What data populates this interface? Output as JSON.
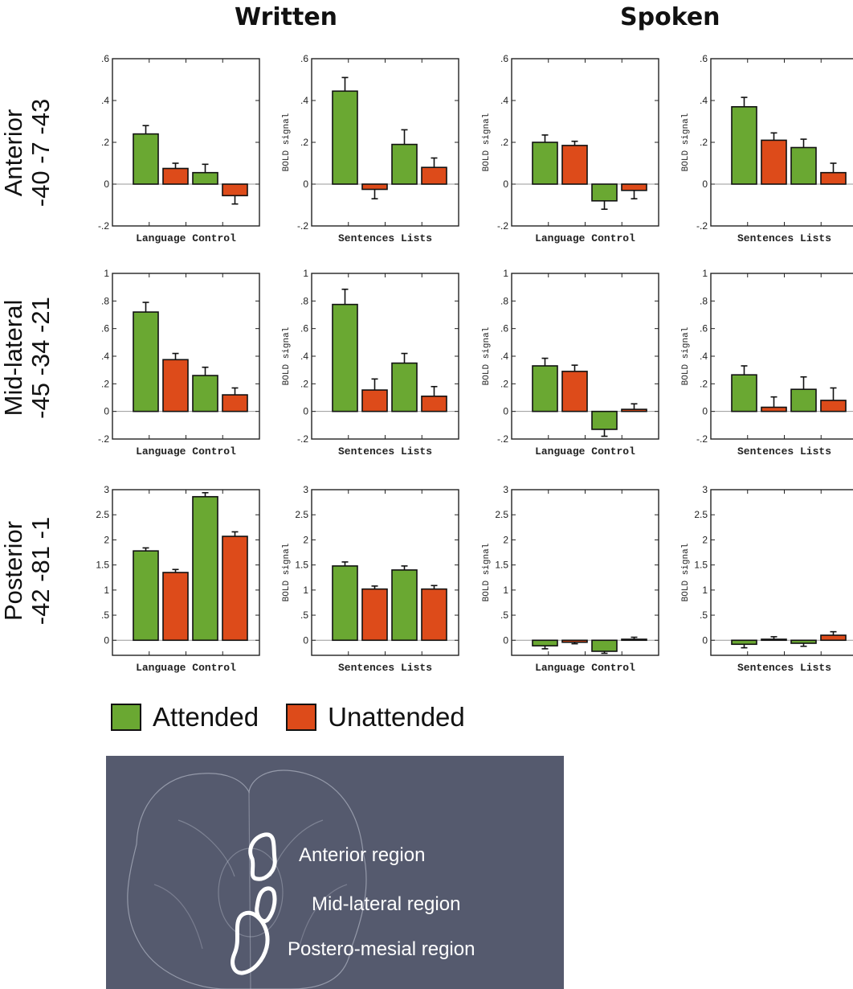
{
  "column_titles": [
    "Written",
    "Spoken"
  ],
  "row_labels": [
    {
      "line1": "Anterior",
      "line2": "-40 -7 -43"
    },
    {
      "line1": "Mid-lateral",
      "line2": "-45 -34 -21"
    },
    {
      "line1": "Posterior",
      "line2": "-42 -81 -1"
    }
  ],
  "legend": [
    {
      "label": "Attended",
      "color": "#6aa832"
    },
    {
      "label": "Unattended",
      "color": "#dd4b1a"
    }
  ],
  "brain_inset": {
    "labels": [
      "Anterior region",
      "Mid-lateral region",
      "Postero-mesial region"
    ],
    "background": "#555a6e"
  },
  "chart_data": [
    {
      "type": "bar",
      "row": "Anterior",
      "column": "Written",
      "ylabel": "",
      "xlabel": "Language Control",
      "ylim": [
        -0.2,
        0.6
      ],
      "yticks": [
        ".6",
        ".4",
        ".2",
        "0",
        "-.2"
      ],
      "ytick_values": [
        0.6,
        0.4,
        0.2,
        0,
        -0.2
      ],
      "values": [
        0.24,
        0.075,
        0.055,
        -0.055
      ],
      "errors": [
        0.04,
        0.025,
        0.04,
        0.04
      ],
      "colors": [
        "#6aa832",
        "#dd4b1a",
        "#6aa832",
        "#dd4b1a"
      ]
    },
    {
      "type": "bar",
      "row": "Anterior",
      "column": "Written",
      "ylabel": "BOLD signal",
      "xlabel": "Sentences Lists",
      "ylim": [
        -0.2,
        0.6
      ],
      "yticks": [
        ".6",
        ".4",
        ".2",
        "0",
        "-.2"
      ],
      "ytick_values": [
        0.6,
        0.4,
        0.2,
        0,
        -0.2
      ],
      "values": [
        0.445,
        -0.025,
        0.19,
        0.08
      ],
      "errors": [
        0.065,
        0.045,
        0.07,
        0.045
      ],
      "colors": [
        "#6aa832",
        "#dd4b1a",
        "#6aa832",
        "#dd4b1a"
      ]
    },
    {
      "type": "bar",
      "row": "Anterior",
      "column": "Spoken",
      "ylabel": "BOLD signal",
      "xlabel": "Language Control",
      "ylim": [
        -0.2,
        0.6
      ],
      "yticks": [
        ".6",
        ".4",
        ".2",
        "0",
        "-.2"
      ],
      "ytick_values": [
        0.6,
        0.4,
        0.2,
        0,
        -0.2
      ],
      "values": [
        0.2,
        0.185,
        -0.08,
        -0.03
      ],
      "errors": [
        0.035,
        0.02,
        0.04,
        0.04
      ],
      "colors": [
        "#6aa832",
        "#dd4b1a",
        "#6aa832",
        "#dd4b1a"
      ]
    },
    {
      "type": "bar",
      "row": "Anterior",
      "column": "Spoken",
      "ylabel": "BOLD signal",
      "xlabel": "Sentences Lists",
      "ylim": [
        -0.2,
        0.6
      ],
      "yticks": [
        ".6",
        ".4",
        ".2",
        "0",
        "-.2"
      ],
      "ytick_values": [
        0.6,
        0.4,
        0.2,
        0,
        -0.2
      ],
      "values": [
        0.37,
        0.21,
        0.175,
        0.055
      ],
      "errors": [
        0.045,
        0.035,
        0.04,
        0.045
      ],
      "colors": [
        "#6aa832",
        "#dd4b1a",
        "#6aa832",
        "#dd4b1a"
      ]
    },
    {
      "type": "bar",
      "row": "Mid-lateral",
      "column": "Written",
      "ylabel": "",
      "xlabel": "Language Control",
      "ylim": [
        -0.2,
        1
      ],
      "yticks": [
        "1",
        ".8",
        ".6",
        ".4",
        ".2",
        "0",
        "-.2"
      ],
      "ytick_values": [
        1,
        0.8,
        0.6,
        0.4,
        0.2,
        0,
        -0.2
      ],
      "values": [
        0.72,
        0.375,
        0.26,
        0.12
      ],
      "errors": [
        0.07,
        0.045,
        0.06,
        0.05
      ],
      "colors": [
        "#6aa832",
        "#dd4b1a",
        "#6aa832",
        "#dd4b1a"
      ]
    },
    {
      "type": "bar",
      "row": "Mid-lateral",
      "column": "Written",
      "ylabel": "BOLD signal",
      "xlabel": "Sentences Lists",
      "ylim": [
        -0.2,
        1
      ],
      "yticks": [
        "1",
        ".8",
        ".6",
        ".4",
        ".2",
        "0",
        "-.2"
      ],
      "ytick_values": [
        1,
        0.8,
        0.6,
        0.4,
        0.2,
        0,
        -0.2
      ],
      "values": [
        0.775,
        0.155,
        0.35,
        0.11
      ],
      "errors": [
        0.11,
        0.08,
        0.07,
        0.07
      ],
      "colors": [
        "#6aa832",
        "#dd4b1a",
        "#6aa832",
        "#dd4b1a"
      ]
    },
    {
      "type": "bar",
      "row": "Mid-lateral",
      "column": "Spoken",
      "ylabel": "BOLD signal",
      "xlabel": "Language Control",
      "ylim": [
        -0.2,
        1
      ],
      "yticks": [
        "1",
        ".8",
        ".6",
        ".4",
        ".2",
        "0",
        "-.2"
      ],
      "ytick_values": [
        1,
        0.8,
        0.6,
        0.4,
        0.2,
        0,
        -0.2
      ],
      "values": [
        0.33,
        0.29,
        -0.13,
        0.015
      ],
      "errors": [
        0.055,
        0.045,
        0.05,
        0.04
      ],
      "colors": [
        "#6aa832",
        "#dd4b1a",
        "#6aa832",
        "#dd4b1a"
      ]
    },
    {
      "type": "bar",
      "row": "Mid-lateral",
      "column": "Spoken",
      "ylabel": "BOLD signal",
      "xlabel": "Sentences Lists",
      "ylim": [
        -0.2,
        1
      ],
      "yticks": [
        "1",
        ".8",
        ".6",
        ".4",
        ".2",
        "0",
        "-.2"
      ],
      "ytick_values": [
        1,
        0.8,
        0.6,
        0.4,
        0.2,
        0,
        -0.2
      ],
      "values": [
        0.265,
        0.03,
        0.16,
        0.08
      ],
      "errors": [
        0.065,
        0.075,
        0.09,
        0.09
      ],
      "colors": [
        "#6aa832",
        "#dd4b1a",
        "#6aa832",
        "#dd4b1a"
      ]
    },
    {
      "type": "bar",
      "row": "Posterior",
      "column": "Written",
      "ylabel": "",
      "xlabel": "Language Control",
      "ylim": [
        -0.3,
        3
      ],
      "yticks": [
        "3",
        "2.5",
        "2",
        "1.5",
        "1",
        ".5",
        "0"
      ],
      "ytick_values": [
        3,
        2.5,
        2,
        1.5,
        1,
        0.5,
        0
      ],
      "values": [
        1.78,
        1.35,
        2.86,
        2.07
      ],
      "errors": [
        0.06,
        0.06,
        0.08,
        0.09
      ],
      "colors": [
        "#6aa832",
        "#dd4b1a",
        "#6aa832",
        "#dd4b1a"
      ]
    },
    {
      "type": "bar",
      "row": "Posterior",
      "column": "Written",
      "ylabel": "BOLD signal",
      "xlabel": "Sentences Lists",
      "ylim": [
        -0.3,
        3
      ],
      "yticks": [
        "3",
        "2.5",
        "2",
        "1.5",
        "1",
        ".5",
        "0"
      ],
      "ytick_values": [
        3,
        2.5,
        2,
        1.5,
        1,
        0.5,
        0
      ],
      "values": [
        1.48,
        1.02,
        1.4,
        1.02
      ],
      "errors": [
        0.08,
        0.06,
        0.08,
        0.07
      ],
      "colors": [
        "#6aa832",
        "#dd4b1a",
        "#6aa832",
        "#dd4b1a"
      ]
    },
    {
      "type": "bar",
      "row": "Posterior",
      "column": "Spoken",
      "ylabel": "BOLD signal",
      "xlabel": "Language Control",
      "ylim": [
        -0.3,
        3
      ],
      "yticks": [
        "3",
        "2.5",
        "2",
        "1.5",
        "1",
        ".5",
        "0"
      ],
      "ytick_values": [
        3,
        2.5,
        2,
        1.5,
        1,
        0.5,
        0
      ],
      "values": [
        -0.11,
        -0.04,
        -0.22,
        0.02
      ],
      "errors": [
        0.06,
        0.03,
        0.04,
        0.04
      ],
      "colors": [
        "#6aa832",
        "#dd4b1a",
        "#6aa832",
        "#dd4b1a"
      ]
    },
    {
      "type": "bar",
      "row": "Posterior",
      "column": "Spoken",
      "ylabel": "BOLD signal",
      "xlabel": "Sentences Lists",
      "ylim": [
        -0.3,
        3
      ],
      "yticks": [
        "3",
        "2.5",
        "2",
        "1.5",
        "1",
        ".5",
        "0"
      ],
      "ytick_values": [
        3,
        2.5,
        2,
        1.5,
        1,
        0.5,
        0
      ],
      "values": [
        -0.08,
        0.02,
        -0.06,
        0.1
      ],
      "errors": [
        0.07,
        0.05,
        0.06,
        0.07
      ],
      "colors": [
        "#6aa832",
        "#dd4b1a",
        "#6aa832",
        "#dd4b1a"
      ]
    }
  ]
}
